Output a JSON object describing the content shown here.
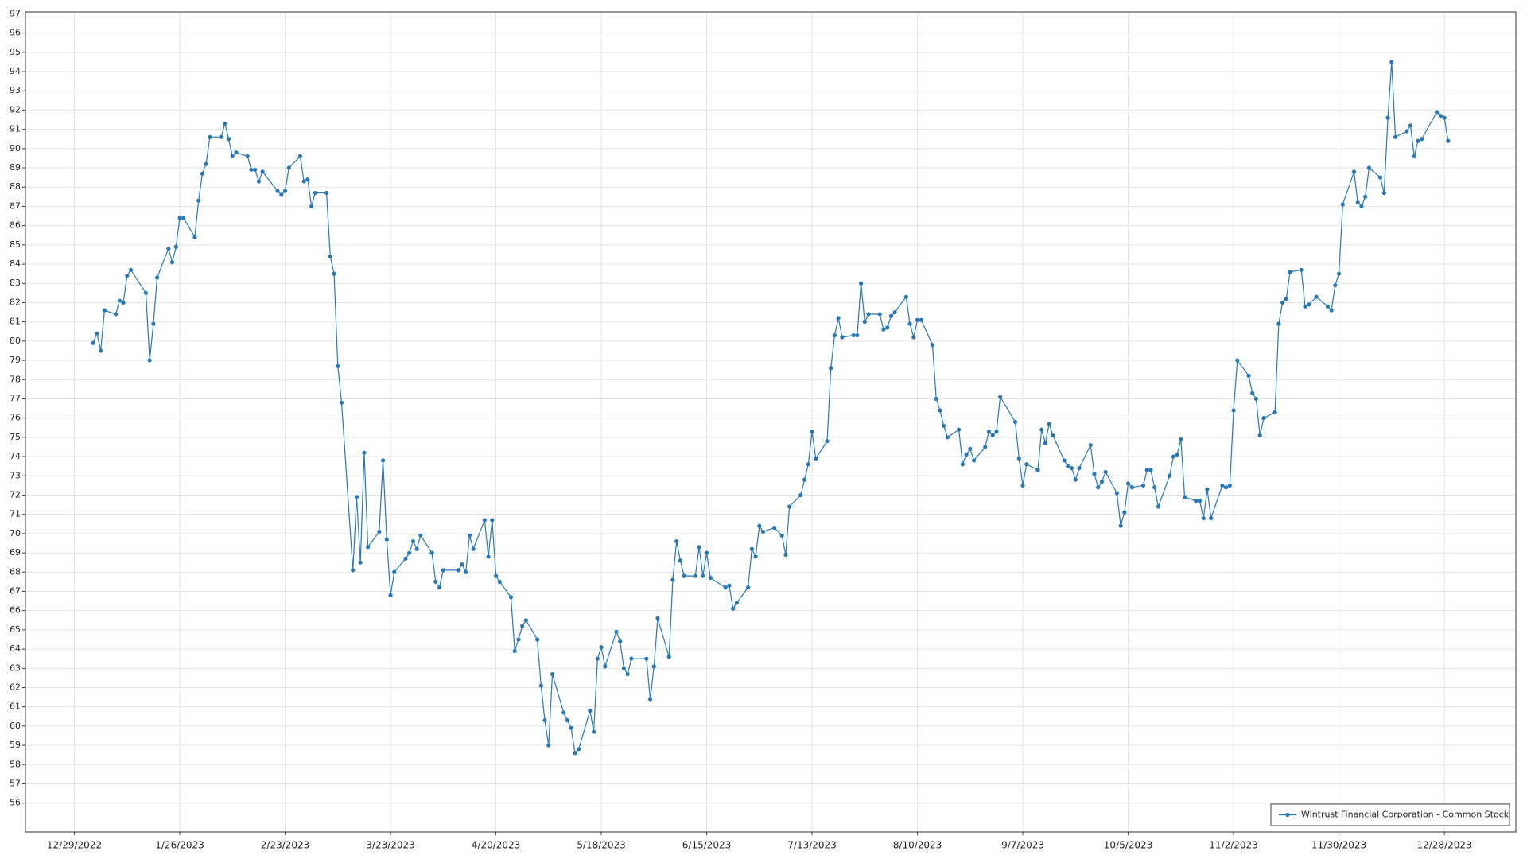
{
  "chart_data": {
    "type": "line",
    "x": [
      "1/3/2023",
      "1/4/2023",
      "1/5/2023",
      "1/6/2023",
      "1/9/2023",
      "1/10/2023",
      "1/11/2023",
      "1/12/2023",
      "1/13/2023",
      "1/17/2023",
      "1/18/2023",
      "1/19/2023",
      "1/20/2023",
      "1/23/2023",
      "1/24/2023",
      "1/25/2023",
      "1/26/2023",
      "1/27/2023",
      "1/30/2023",
      "1/31/2023",
      "2/1/2023",
      "2/2/2023",
      "2/3/2023",
      "2/6/2023",
      "2/7/2023",
      "2/8/2023",
      "2/9/2023",
      "2/10/2023",
      "2/13/2023",
      "2/14/2023",
      "2/15/2023",
      "2/16/2023",
      "2/17/2023",
      "2/21/2023",
      "2/22/2023",
      "2/23/2023",
      "2/24/2023",
      "2/27/2023",
      "2/28/2023",
      "3/1/2023",
      "3/2/2023",
      "3/3/2023",
      "3/6/2023",
      "3/7/2023",
      "3/8/2023",
      "3/9/2023",
      "3/10/2023",
      "3/13/2023",
      "3/14/2023",
      "3/15/2023",
      "3/16/2023",
      "3/17/2023",
      "3/20/2023",
      "3/21/2023",
      "3/22/2023",
      "3/23/2023",
      "3/24/2023",
      "3/27/2023",
      "3/28/2023",
      "3/29/2023",
      "3/30/2023",
      "3/31/2023",
      "4/3/2023",
      "4/4/2023",
      "4/5/2023",
      "4/6/2023",
      "4/10/2023",
      "4/11/2023",
      "4/12/2023",
      "4/13/2023",
      "4/14/2023",
      "4/17/2023",
      "4/18/2023",
      "4/19/2023",
      "4/20/2023",
      "4/21/2023",
      "4/24/2023",
      "4/25/2023",
      "4/26/2023",
      "4/27/2023",
      "4/28/2023",
      "5/1/2023",
      "5/2/2023",
      "5/3/2023",
      "5/4/2023",
      "5/5/2023",
      "5/8/2023",
      "5/9/2023",
      "5/10/2023",
      "5/11/2023",
      "5/12/2023",
      "5/15/2023",
      "5/16/2023",
      "5/17/2023",
      "5/18/2023",
      "5/19/2023",
      "5/22/2023",
      "5/23/2023",
      "5/24/2023",
      "5/25/2023",
      "5/26/2023",
      "5/30/2023",
      "5/31/2023",
      "6/1/2023",
      "6/2/2023",
      "6/5/2023",
      "6/6/2023",
      "6/7/2023",
      "6/8/2023",
      "6/9/2023",
      "6/12/2023",
      "6/13/2023",
      "6/14/2023",
      "6/15/2023",
      "6/16/2023",
      "6/20/2023",
      "6/21/2023",
      "6/22/2023",
      "6/23/2023",
      "6/26/2023",
      "6/27/2023",
      "6/28/2023",
      "6/29/2023",
      "6/30/2023",
      "7/3/2023",
      "7/5/2023",
      "7/6/2023",
      "7/7/2023",
      "7/10/2023",
      "7/11/2023",
      "7/12/2023",
      "7/13/2023",
      "7/14/2023",
      "7/17/2023",
      "7/18/2023",
      "7/19/2023",
      "7/20/2023",
      "7/21/2023",
      "7/24/2023",
      "7/25/2023",
      "7/26/2023",
      "7/27/2023",
      "7/28/2023",
      "7/31/2023",
      "8/1/2023",
      "8/2/2023",
      "8/3/2023",
      "8/4/2023",
      "8/7/2023",
      "8/8/2023",
      "8/9/2023",
      "8/10/2023",
      "8/11/2023",
      "8/14/2023",
      "8/15/2023",
      "8/16/2023",
      "8/17/2023",
      "8/18/2023",
      "8/21/2023",
      "8/22/2023",
      "8/23/2023",
      "8/24/2023",
      "8/25/2023",
      "8/28/2023",
      "8/29/2023",
      "8/30/2023",
      "8/31/2023",
      "9/1/2023",
      "9/5/2023",
      "9/6/2023",
      "9/7/2023",
      "9/8/2023",
      "9/11/2023",
      "9/12/2023",
      "9/13/2023",
      "9/14/2023",
      "9/15/2023",
      "9/18/2023",
      "9/19/2023",
      "9/20/2023",
      "9/21/2023",
      "9/22/2023",
      "9/25/2023",
      "9/26/2023",
      "9/27/2023",
      "9/28/2023",
      "9/29/2023",
      "10/2/2023",
      "10/3/2023",
      "10/4/2023",
      "10/5/2023",
      "10/6/2023",
      "10/9/2023",
      "10/10/2023",
      "10/11/2023",
      "10/12/2023",
      "10/13/2023",
      "10/16/2023",
      "10/17/2023",
      "10/18/2023",
      "10/19/2023",
      "10/20/2023",
      "10/23/2023",
      "10/24/2023",
      "10/25/2023",
      "10/26/2023",
      "10/27/2023",
      "10/30/2023",
      "10/31/2023",
      "11/1/2023",
      "11/2/2023",
      "11/3/2023",
      "11/6/2023",
      "11/7/2023",
      "11/8/2023",
      "11/9/2023",
      "11/10/2023",
      "11/13/2023",
      "11/14/2023",
      "11/15/2023",
      "11/16/2023",
      "11/17/2023",
      "11/20/2023",
      "11/21/2023",
      "11/22/2023",
      "11/24/2023",
      "11/27/2023",
      "11/28/2023",
      "11/29/2023",
      "11/30/2023",
      "12/1/2023",
      "12/4/2023",
      "12/5/2023",
      "12/6/2023",
      "12/7/2023",
      "12/8/2023",
      "12/11/2023",
      "12/12/2023",
      "12/13/2023",
      "12/14/2023",
      "12/15/2023",
      "12/18/2023",
      "12/19/2023",
      "12/20/2023",
      "12/21/2023",
      "12/22/2023",
      "12/26/2023",
      "12/27/2023",
      "12/28/2023",
      "12/29/2023"
    ],
    "series": [
      {
        "name": "Wintrust Financial Corporation - Common Stock",
        "color": "#2878b5",
        "values": [
          79.9,
          80.4,
          79.5,
          81.6,
          81.4,
          82.1,
          82.0,
          83.4,
          83.7,
          82.5,
          79.0,
          80.9,
          83.3,
          84.8,
          84.1,
          84.9,
          86.4,
          86.4,
          85.4,
          87.3,
          88.7,
          89.2,
          90.6,
          90.6,
          91.3,
          90.5,
          89.6,
          89.8,
          89.6,
          88.9,
          88.9,
          88.3,
          88.8,
          87.8,
          87.6,
          87.8,
          89.0,
          89.6,
          88.3,
          88.4,
          87.0,
          87.7,
          87.7,
          84.4,
          83.5,
          78.7,
          76.8,
          68.1,
          71.9,
          68.5,
          74.2,
          69.3,
          70.1,
          73.8,
          69.7,
          66.8,
          68.0,
          68.7,
          69.0,
          69.6,
          69.2,
          69.9,
          69.0,
          67.5,
          67.2,
          68.1,
          68.1,
          68.4,
          68.0,
          69.9,
          69.2,
          70.7,
          68.8,
          70.7,
          67.8,
          67.5,
          66.7,
          63.9,
          64.5,
          65.2,
          65.5,
          64.5,
          62.1,
          60.3,
          59.0,
          62.7,
          60.7,
          60.3,
          59.9,
          58.6,
          58.8,
          60.8,
          59.7,
          63.5,
          64.1,
          63.1,
          64.9,
          64.4,
          63.0,
          62.7,
          63.5,
          63.5,
          61.4,
          63.1,
          65.6,
          63.6,
          67.6,
          69.6,
          68.6,
          67.8,
          67.8,
          69.3,
          67.8,
          69.0,
          67.7,
          67.2,
          67.3,
          66.1,
          66.4,
          67.2,
          69.2,
          68.8,
          70.4,
          70.1,
          70.3,
          69.9,
          68.9,
          71.4,
          72.0,
          72.8,
          73.6,
          75.3,
          73.9,
          74.8,
          78.6,
          80.3,
          81.2,
          80.2,
          80.3,
          80.3,
          83.0,
          81.0,
          81.4,
          81.4,
          80.6,
          80.7,
          81.3,
          81.5,
          82.3,
          80.9,
          80.2,
          81.1,
          81.1,
          79.8,
          77.0,
          76.4,
          75.6,
          75.0,
          75.4,
          73.6,
          74.1,
          74.4,
          73.8,
          74.5,
          75.3,
          75.1,
          75.3,
          77.1,
          75.8,
          73.9,
          72.5,
          73.6,
          73.3,
          75.4,
          74.7,
          75.7,
          75.1,
          73.8,
          73.5,
          73.4,
          72.8,
          73.4,
          74.6,
          73.1,
          72.4,
          72.7,
          73.2,
          72.1,
          70.4,
          71.1,
          72.6,
          72.4,
          72.5,
          73.3,
          73.3,
          72.4,
          71.4,
          73.0,
          74.0,
          74.1,
          74.9,
          71.9,
          71.7,
          71.7,
          70.8,
          72.3,
          70.8,
          72.5,
          72.4,
          72.5,
          76.4,
          79.0,
          78.2,
          77.3,
          77.0,
          75.1,
          76.0,
          76.3,
          80.9,
          82.0,
          82.2,
          83.6,
          83.7,
          81.8,
          81.9,
          82.3,
          81.8,
          81.6,
          82.9,
          83.5,
          87.1,
          88.8,
          87.2,
          87.0,
          87.5,
          89.0,
          88.5,
          87.7,
          91.6,
          94.5,
          90.6,
          90.9,
          91.2,
          89.6,
          90.4,
          90.5,
          91.9,
          91.7,
          91.6,
          90.4
        ]
      }
    ],
    "xlim": [
      "12/16/2022",
      "1/16/2024"
    ],
    "xticks": [
      "12/29/2022",
      "1/26/2023",
      "2/23/2023",
      "3/23/2023",
      "4/20/2023",
      "5/18/2023",
      "6/15/2023",
      "7/13/2023",
      "8/10/2023",
      "9/7/2023",
      "10/5/2023",
      "11/2/2023",
      "11/30/2023",
      "12/28/2023"
    ],
    "ylim": [
      54.5,
      97.1
    ],
    "yticks": [
      56,
      57,
      58,
      59,
      60,
      61,
      62,
      63,
      64,
      65,
      66,
      67,
      68,
      69,
      70,
      71,
      72,
      73,
      74,
      75,
      76,
      77,
      78,
      79,
      80,
      81,
      82,
      83,
      84,
      85,
      86,
      87,
      88,
      89,
      90,
      91,
      92,
      93,
      94,
      95,
      96,
      97
    ],
    "grid": true,
    "legend": "lower right"
  }
}
